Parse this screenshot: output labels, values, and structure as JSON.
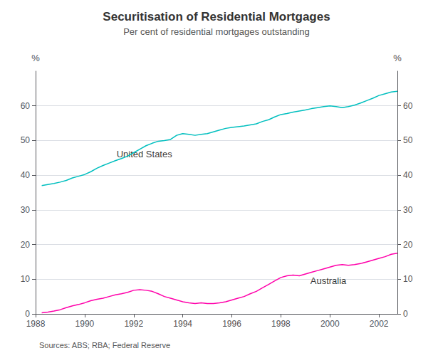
{
  "chart_data": {
    "type": "line",
    "title": "Securitisation of Residential Mortgages",
    "subtitle": "Per cent of residential mortgages outstanding",
    "source": "Sources: ABS; RBA; Federal Reserve",
    "ylabel": "%",
    "y2label": "%",
    "xlim": [
      1988,
      2002.75
    ],
    "xticks": [
      1988,
      1990,
      1992,
      1994,
      1996,
      1998,
      2000,
      2002
    ],
    "ylim": [
      0,
      70
    ],
    "yticks": [
      0,
      10,
      20,
      30,
      40,
      50,
      60
    ],
    "y2lim": [
      0,
      70
    ],
    "y2ticks": [
      0,
      10,
      20,
      30,
      40,
      50,
      60
    ],
    "grid": true,
    "x": [
      1988.25,
      1988.5,
      1988.75,
      1989,
      1989.25,
      1989.5,
      1989.75,
      1990,
      1990.25,
      1990.5,
      1990.75,
      1991,
      1991.25,
      1991.5,
      1991.75,
      1992,
      1992.25,
      1992.5,
      1992.75,
      1993,
      1993.25,
      1993.5,
      1993.75,
      1994,
      1994.25,
      1994.5,
      1994.75,
      1995,
      1995.25,
      1995.5,
      1995.75,
      1996,
      1996.25,
      1996.5,
      1996.75,
      1997,
      1997.25,
      1997.5,
      1997.75,
      1998,
      1998.25,
      1998.5,
      1998.75,
      1999,
      1999.25,
      1999.5,
      1999.75,
      2000,
      2000.25,
      2000.5,
      2000.75,
      2001,
      2001.25,
      2001.5,
      2001.75,
      2002,
      2002.25,
      2002.5,
      2002.75
    ],
    "series": [
      {
        "name": "United States",
        "color": "#00BFBF",
        "values": [
          37.0,
          37.3,
          37.6,
          38.0,
          38.5,
          39.2,
          39.7,
          40.2,
          41.0,
          42.0,
          42.8,
          43.5,
          44.2,
          44.8,
          45.5,
          46.5,
          47.5,
          48.5,
          49.2,
          49.8,
          50.0,
          50.3,
          51.5,
          52.0,
          51.8,
          51.5,
          51.8,
          52.0,
          52.5,
          53.0,
          53.5,
          53.8,
          54.0,
          54.2,
          54.5,
          54.8,
          55.5,
          56.0,
          56.8,
          57.5,
          57.8,
          58.2,
          58.5,
          58.8,
          59.2,
          59.5,
          59.8,
          60.0,
          59.8,
          59.5,
          59.8,
          60.2,
          60.8,
          61.5,
          62.2,
          63.0,
          63.5,
          64.0,
          64.2
        ]
      },
      {
        "name": "Australia",
        "color": "#FF00AA",
        "values": [
          0.3,
          0.5,
          0.8,
          1.2,
          1.8,
          2.3,
          2.7,
          3.2,
          3.8,
          4.2,
          4.5,
          5.0,
          5.5,
          5.8,
          6.2,
          6.8,
          7.0,
          6.8,
          6.5,
          5.8,
          5.0,
          4.5,
          4.0,
          3.5,
          3.2,
          3.0,
          3.2,
          3.0,
          3.0,
          3.2,
          3.5,
          4.0,
          4.5,
          5.0,
          5.8,
          6.5,
          7.5,
          8.5,
          9.5,
          10.5,
          11.0,
          11.2,
          11.0,
          11.5,
          12.0,
          12.5,
          13.0,
          13.5,
          14.0,
          14.2,
          14.0,
          14.2,
          14.5,
          15.0,
          15.5,
          16.0,
          16.5,
          17.2,
          17.5
        ]
      }
    ],
    "annotations": [
      {
        "text": "United States",
        "x": 1991.3,
        "y": 46.0
      },
      {
        "text": "Australia",
        "x": 1999.2,
        "y": 9.5
      }
    ]
  }
}
